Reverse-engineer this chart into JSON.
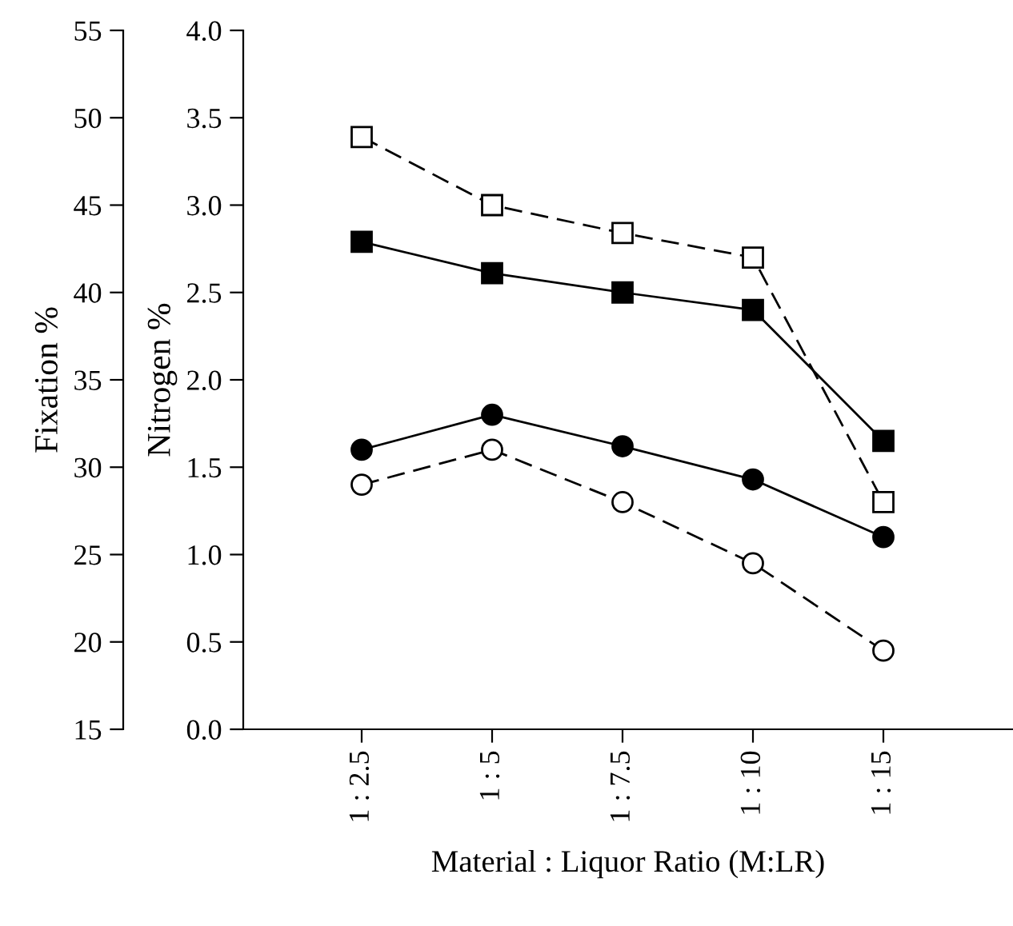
{
  "chart_data": {
    "type": "line",
    "xlabel": "Material : Liquor Ratio (M:LR)",
    "ylabel": "Fixation %",
    "y2label": "Nitrogen %",
    "categories": [
      "1 : 2.5",
      "1 : 5",
      "1 : 7.5",
      "1 : 10",
      "1 : 15"
    ],
    "ylim": [
      15,
      55
    ],
    "yticks": [
      15,
      20,
      25,
      30,
      35,
      40,
      45,
      50,
      55
    ],
    "y2lim": [
      0,
      4
    ],
    "y2ticks": [
      {
        "value": 0,
        "label": "0.0"
      },
      {
        "value": 0.5,
        "label": "0.5"
      },
      {
        "value": 1,
        "label": "1.0"
      },
      {
        "value": 1.5,
        "label": "1.5"
      },
      {
        "value": 2,
        "label": "2.0"
      },
      {
        "value": 2.5,
        "label": "2.5"
      },
      {
        "value": 3,
        "label": "3.0"
      },
      {
        "value": 3.5,
        "label": "3.5"
      },
      {
        "value": 4,
        "label": "4.0"
      }
    ],
    "grid": false,
    "series": [
      {
        "color": "#ffffff",
        "marker": "square",
        "line_style": "dashed",
        "values": [
          48.9,
          45.0,
          43.4,
          42.0,
          28.0
        ]
      },
      {
        "color": "#000000",
        "marker": "square",
        "line_style": "solid",
        "values": [
          42.9,
          41.1,
          40.0,
          39.0,
          31.5
        ]
      },
      {
        "color": "#000000",
        "marker": "circle",
        "line_style": "solid",
        "axis": "y2",
        "values": [
          1.6,
          1.8,
          1.62,
          1.43,
          1.1
        ]
      },
      {
        "color": "#ffffff",
        "marker": "circle",
        "line_style": "dashed",
        "axis": "y2",
        "values": [
          1.4,
          1.6,
          1.3,
          0.95,
          0.45
        ]
      }
    ]
  }
}
